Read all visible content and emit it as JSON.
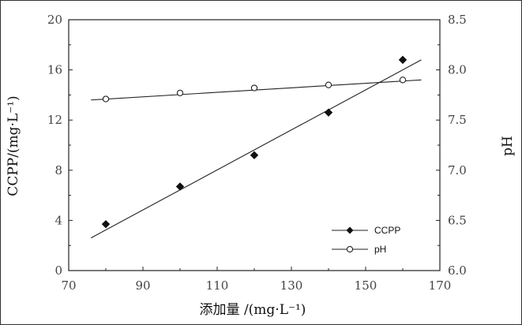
{
  "chart_data": {
    "type": "scatter",
    "xlabel": "添加量 /(mg·L⁻¹)",
    "ylabel_left": "CCPP/(mg·L⁻¹)",
    "ylabel_right": "pH",
    "xlim": [
      70,
      170
    ],
    "ylim_left": [
      0,
      20
    ],
    "ylim_right": [
      6.0,
      8.5
    ],
    "x_ticks": [
      "70",
      "90",
      "110",
      "130",
      "150",
      "170"
    ],
    "y_left_ticks": [
      "0",
      "4",
      "8",
      "12",
      "16",
      "20"
    ],
    "y_right_ticks": [
      "6.0",
      "6.5",
      "7.0",
      "7.5",
      "8.0",
      "8.5"
    ],
    "grid": false,
    "legend_position": "bottom-right",
    "series": [
      {
        "name": "CCPP",
        "axis": "left",
        "marker": "filled-diamond",
        "x": [
          80,
          100,
          120,
          140,
          160
        ],
        "y": [
          3.7,
          6.7,
          9.2,
          12.6,
          16.8
        ],
        "fit_line": {
          "x": [
            76,
            165
          ],
          "y": [
            2.6,
            16.8
          ]
        }
      },
      {
        "name": "pH",
        "axis": "right",
        "marker": "open-circle",
        "x": [
          80,
          100,
          120,
          140,
          160
        ],
        "y": [
          7.71,
          7.77,
          7.82,
          7.85,
          7.9
        ],
        "fit_line": {
          "x": [
            76,
            165
          ],
          "y": [
            7.7,
            7.9
          ]
        }
      }
    ]
  }
}
